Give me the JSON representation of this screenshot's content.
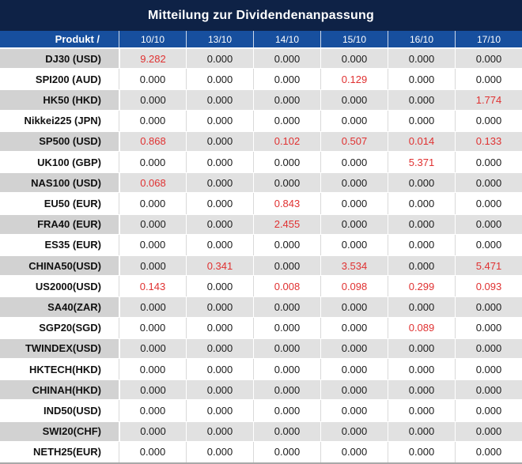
{
  "title": "Mitteilung zur Dividendenanpassung",
  "colors": {
    "title_bar_navy": "#0e2246",
    "header_blue": "#174f9e",
    "row_gray": "#e1e1e1",
    "product_cell_gray": "#d2d2d2",
    "highlight_red": "#e03131",
    "value_text": "#1b1b1b"
  },
  "table": {
    "product_header": "Produkt /",
    "date_headers": [
      "10/10",
      "13/10",
      "14/10",
      "15/10",
      "16/10",
      "17/10"
    ],
    "rows": [
      {
        "product": "DJ30 (USD)",
        "values": [
          "9.282",
          "0.000",
          "0.000",
          "0.000",
          "0.000",
          "0.000"
        ],
        "red": [
          0
        ]
      },
      {
        "product": "SPI200 (AUD)",
        "values": [
          "0.000",
          "0.000",
          "0.000",
          "0.129",
          "0.000",
          "0.000"
        ],
        "red": [
          3
        ]
      },
      {
        "product": "HK50 (HKD)",
        "values": [
          "0.000",
          "0.000",
          "0.000",
          "0.000",
          "0.000",
          "1.774"
        ],
        "red": [
          5
        ]
      },
      {
        "product": "Nikkei225 (JPN)",
        "values": [
          "0.000",
          "0.000",
          "0.000",
          "0.000",
          "0.000",
          "0.000"
        ],
        "red": []
      },
      {
        "product": "SP500 (USD)",
        "values": [
          "0.868",
          "0.000",
          "0.102",
          "0.507",
          "0.014",
          "0.133"
        ],
        "red": [
          0,
          2,
          3,
          4,
          5
        ]
      },
      {
        "product": "UK100 (GBP)",
        "values": [
          "0.000",
          "0.000",
          "0.000",
          "0.000",
          "5.371",
          "0.000"
        ],
        "red": [
          4
        ]
      },
      {
        "product": "NAS100 (USD)",
        "values": [
          "0.068",
          "0.000",
          "0.000",
          "0.000",
          "0.000",
          "0.000"
        ],
        "red": [
          0
        ]
      },
      {
        "product": "EU50 (EUR)",
        "values": [
          "0.000",
          "0.000",
          "0.843",
          "0.000",
          "0.000",
          "0.000"
        ],
        "red": [
          2
        ]
      },
      {
        "product": "FRA40 (EUR)",
        "values": [
          "0.000",
          "0.000",
          "2.455",
          "0.000",
          "0.000",
          "0.000"
        ],
        "red": [
          2
        ]
      },
      {
        "product": "ES35 (EUR)",
        "values": [
          "0.000",
          "0.000",
          "0.000",
          "0.000",
          "0.000",
          "0.000"
        ],
        "red": []
      },
      {
        "product": "CHINA50(USD)",
        "values": [
          "0.000",
          "0.341",
          "0.000",
          "3.534",
          "0.000",
          "5.471"
        ],
        "red": [
          1,
          3,
          5
        ]
      },
      {
        "product": "US2000(USD)",
        "values": [
          "0.143",
          "0.000",
          "0.008",
          "0.098",
          "0.299",
          "0.093"
        ],
        "red": [
          0,
          2,
          3,
          4,
          5
        ]
      },
      {
        "product": "SA40(ZAR)",
        "values": [
          "0.000",
          "0.000",
          "0.000",
          "0.000",
          "0.000",
          "0.000"
        ],
        "red": []
      },
      {
        "product": "SGP20(SGD)",
        "values": [
          "0.000",
          "0.000",
          "0.000",
          "0.000",
          "0.089",
          "0.000"
        ],
        "red": [
          4
        ]
      },
      {
        "product": "TWINDEX(USD)",
        "values": [
          "0.000",
          "0.000",
          "0.000",
          "0.000",
          "0.000",
          "0.000"
        ],
        "red": []
      },
      {
        "product": "HKTECH(HKD)",
        "values": [
          "0.000",
          "0.000",
          "0.000",
          "0.000",
          "0.000",
          "0.000"
        ],
        "red": []
      },
      {
        "product": "CHINAH(HKD)",
        "values": [
          "0.000",
          "0.000",
          "0.000",
          "0.000",
          "0.000",
          "0.000"
        ],
        "red": []
      },
      {
        "product": "IND50(USD)",
        "values": [
          "0.000",
          "0.000",
          "0.000",
          "0.000",
          "0.000",
          "0.000"
        ],
        "red": []
      },
      {
        "product": "SWI20(CHF)",
        "values": [
          "0.000",
          "0.000",
          "0.000",
          "0.000",
          "0.000",
          "0.000"
        ],
        "red": []
      },
      {
        "product": "NETH25(EUR)",
        "values": [
          "0.000",
          "0.000",
          "0.000",
          "0.000",
          "0.000",
          "0.000"
        ],
        "red": []
      }
    ]
  }
}
